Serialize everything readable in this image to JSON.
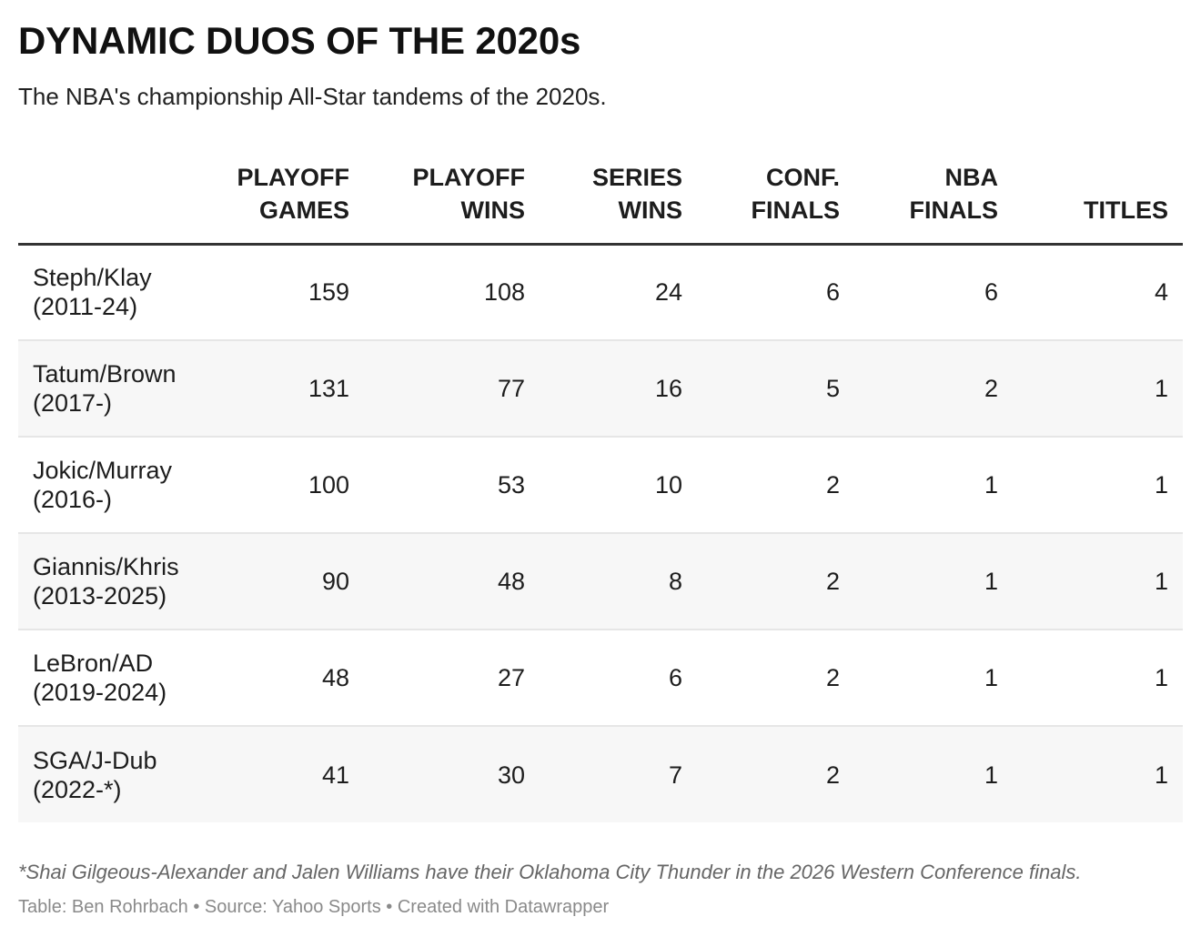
{
  "title": "DYNAMIC DUOS OF THE 2020s",
  "subtitle": "The NBA's championship All-Star tandems of the 2020s.",
  "chart_data": {
    "type": "table",
    "columns": [
      {
        "line1": "",
        "line2": ""
      },
      {
        "line1": "PLAYOFF",
        "line2": "GAMES"
      },
      {
        "line1": "PLAYOFF",
        "line2": "WINS"
      },
      {
        "line1": "SERIES",
        "line2": "WINS"
      },
      {
        "line1": "CONF.",
        "line2": "FINALS"
      },
      {
        "line1": "NBA",
        "line2": "FINALS"
      },
      {
        "line1": "",
        "line2": "TITLES"
      }
    ],
    "rows": [
      {
        "duo": "Steph/Klay",
        "years": "(2011-24)",
        "values": [
          159,
          108,
          24,
          6,
          6,
          4
        ]
      },
      {
        "duo": "Tatum/Brown",
        "years": "(2017-)",
        "values": [
          131,
          77,
          16,
          5,
          2,
          1
        ]
      },
      {
        "duo": "Jokic/Murray",
        "years": "(2016-)",
        "values": [
          100,
          53,
          10,
          2,
          1,
          1
        ]
      },
      {
        "duo": "Giannis/Khris",
        "years": "(2013-2025)",
        "values": [
          90,
          48,
          8,
          2,
          1,
          1
        ]
      },
      {
        "duo": "LeBron/AD",
        "years": "(2019-2024)",
        "values": [
          48,
          27,
          6,
          2,
          1,
          1
        ]
      },
      {
        "duo": "SGA/J-Dub",
        "years": "(2022-*)",
        "values": [
          41,
          30,
          7,
          2,
          1,
          1
        ]
      }
    ]
  },
  "footnote": "*Shai Gilgeous-Alexander and Jalen Williams have their Oklahoma City Thunder in the 2026 Western Conference finals.",
  "credits": "Table: Ben Rohrbach • Source: Yahoo Sports • Created with Datawrapper",
  "colors": {
    "text": "#1d1d1d",
    "header_rule": "#333333",
    "row_divider": "#e6e6e6",
    "zebra": "#f7f7f7",
    "muted": "#8a8a8a"
  }
}
